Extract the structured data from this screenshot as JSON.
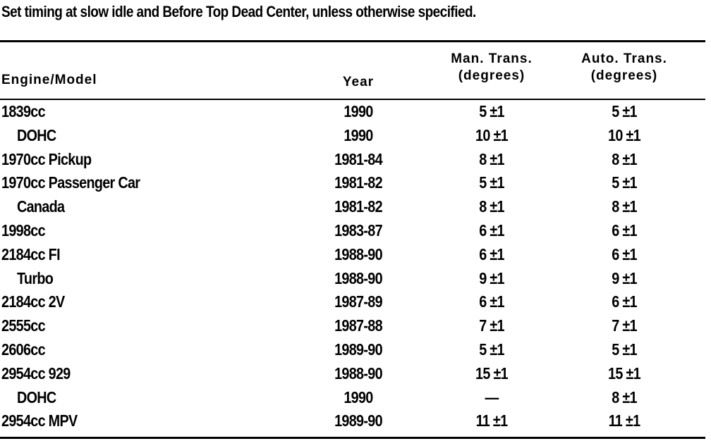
{
  "note": "Set timing at slow idle and Before Top Dead Center, unless otherwise specified.",
  "table": {
    "columns": [
      [
        "Engine/Model"
      ],
      [
        "Year"
      ],
      [
        "Man. Trans.",
        "(degrees)"
      ],
      [
        "Auto. Trans.",
        "(degrees)"
      ]
    ],
    "rows": [
      [
        "1839cc",
        "1990",
        "5 ±1",
        "5 ±1"
      ],
      [
        "DOHC",
        "1990",
        "10 ±1",
        "10 ±1"
      ],
      [
        "1970cc Pickup",
        "1981-84",
        "8 ±1",
        "8 ±1"
      ],
      [
        "1970cc Passenger Car",
        "1981-82",
        "5 ±1",
        "5 ±1"
      ],
      [
        "Canada",
        "1981-82",
        "8 ±1",
        "8 ±1"
      ],
      [
        "1998cc",
        "1983-87",
        "6 ±1",
        "6 ±1"
      ],
      [
        "2184cc FI",
        "1988-90",
        "6 ±1",
        "6 ±1"
      ],
      [
        "Turbo",
        "1988-90",
        "9 ±1",
        "9 ±1"
      ],
      [
        "2184cc 2V",
        "1987-89",
        "6 ±1",
        "6 ±1"
      ],
      [
        "2555cc",
        "1987-88",
        "7 ±1",
        "7 ±1"
      ],
      [
        "2606cc",
        "1989-90",
        "5 ±1",
        "5 ±1"
      ],
      [
        "2954cc 929",
        "1988-90",
        "15 ±1",
        "15 ±1"
      ],
      [
        "DOHC",
        "1990",
        "—",
        "8 ±1"
      ],
      [
        "2954cc MPV",
        "1989-90",
        "11 ±1",
        "11 ±1"
      ]
    ]
  }
}
